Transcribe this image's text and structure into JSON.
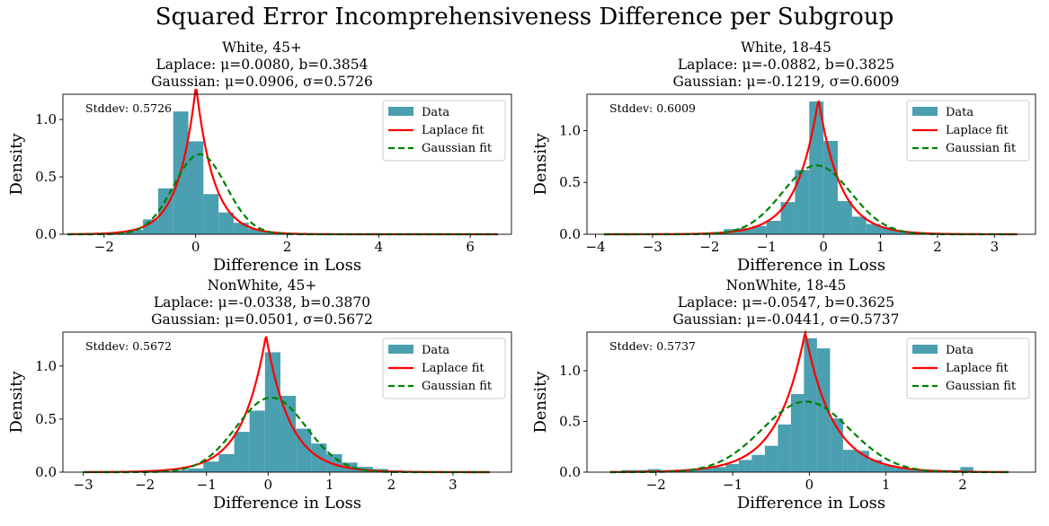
{
  "figure": {
    "title": "Squared Error Incomprehensiveness Difference per Subgroup"
  },
  "colors": {
    "hist": "#4a9fb0",
    "laplace": "#ff0000",
    "gaussian": "#008000"
  },
  "chart_data": [
    {
      "type": "bar",
      "title_lines": [
        "White, 45+",
        "Laplace: μ=0.0080, b=0.3854",
        "Gaussian: μ=0.0906, σ=0.5726"
      ],
      "xlabel": "Difference in Loss",
      "ylabel": "Density",
      "xlim": [
        -2.9,
        6.9
      ],
      "ylim": [
        0,
        1.22
      ],
      "xticks": [
        -2,
        0,
        2,
        4,
        6
      ],
      "yticks": [
        0.0,
        0.5,
        1.0
      ],
      "annotation": "Stddev: 0.5726",
      "legend": [
        "Data",
        "Laplace fit",
        "Gaussian fit"
      ],
      "legend_position": "top-right",
      "bin_edges": [
        -2.8,
        -2.47,
        -2.14,
        -1.81,
        -1.48,
        -1.15,
        -0.82,
        -0.49,
        -0.16,
        0.17,
        0.5,
        0.83,
        1.16,
        1.49,
        1.82,
        2.15,
        2.48,
        2.81,
        3.14,
        3.47,
        3.8,
        4.13,
        4.46,
        4.79,
        5.12,
        5.45,
        5.78,
        6.11,
        6.44
      ],
      "density": [
        0.003,
        0.003,
        0.006,
        0.015,
        0.04,
        0.13,
        0.4,
        1.07,
        0.81,
        0.35,
        0.19,
        0.1,
        0.05,
        0.02,
        0.01,
        0.005,
        0.004,
        0.003,
        0.003,
        0.002,
        0.002,
        0.002,
        0.001,
        0.001,
        0.001,
        0.001,
        0.001,
        0.001
      ],
      "laplace": {
        "mu": 0.008,
        "b": 0.3854
      },
      "gaussian": {
        "mu": 0.0906,
        "sigma": 0.5726
      },
      "fit_range": [
        -2.8,
        6.6
      ]
    },
    {
      "type": "bar",
      "title_lines": [
        "White, 18-45",
        "Laplace: μ=-0.0882, b=0.3825",
        "Gaussian: μ=-0.1219, σ=0.6009"
      ],
      "xlabel": "Difference in Loss",
      "ylabel": "Density",
      "xlim": [
        -4.15,
        3.72
      ],
      "ylim": [
        0,
        1.35
      ],
      "xticks": [
        -4,
        -3,
        -2,
        -1,
        0,
        1,
        2,
        3
      ],
      "yticks": [
        0.0,
        0.5,
        1.0
      ],
      "annotation": "Stddev: 0.6009",
      "legend": [
        "Data",
        "Laplace fit",
        "Gaussian fit"
      ],
      "legend_position": "top-right",
      "bin_edges": [
        -3.0,
        -2.75,
        -2.5,
        -2.25,
        -2.0,
        -1.75,
        -1.5,
        -1.25,
        -1.0,
        -0.75,
        -0.5,
        -0.25,
        0.0,
        0.25,
        0.5,
        0.75,
        1.0,
        1.25,
        1.5,
        1.75,
        2.0,
        2.25,
        2.5,
        2.75,
        3.0
      ],
      "density": [
        0.002,
        0.002,
        0.004,
        0.006,
        0.02,
        0.05,
        0.06,
        0.08,
        0.13,
        0.31,
        0.62,
        1.28,
        0.9,
        0.32,
        0.17,
        0.1,
        0.07,
        0.03,
        0.015,
        0.008,
        0.005,
        0.003,
        0.002,
        0.002
      ],
      "laplace": {
        "mu": -0.0882,
        "b": 0.3825
      },
      "gaussian": {
        "mu": -0.1219,
        "sigma": 0.6009
      },
      "fit_range": [
        -3.85,
        3.4
      ]
    },
    {
      "type": "bar",
      "title_lines": [
        "NonWhite, 45+",
        "Laplace: μ=-0.0338, b=0.3870",
        "Gaussian: μ=0.0501, σ=0.5672"
      ],
      "xlabel": "Difference in Loss",
      "ylabel": "Density",
      "xlim": [
        -3.33,
        3.95
      ],
      "ylim": [
        0,
        1.32
      ],
      "xticks": [
        -3,
        -2,
        -1,
        0,
        1,
        2,
        3
      ],
      "yticks": [
        0.0,
        0.5,
        1.0
      ],
      "annotation": "Stddev: 0.5672",
      "legend": [
        "Data",
        "Laplace fit",
        "Gaussian fit"
      ],
      "legend_position": "top-right",
      "bin_edges": [
        -3.05,
        -2.8,
        -2.55,
        -2.3,
        -2.05,
        -1.8,
        -1.55,
        -1.3,
        -1.05,
        -0.8,
        -0.55,
        -0.3,
        -0.05,
        0.2,
        0.45,
        0.7,
        0.95,
        1.2,
        1.45,
        1.7,
        1.95,
        2.2,
        2.45,
        2.7,
        2.95,
        3.2,
        3.45
      ],
      "density": [
        0.003,
        0.002,
        0.002,
        0.003,
        0.006,
        0.01,
        0.02,
        0.035,
        0.1,
        0.17,
        0.38,
        0.58,
        1.13,
        0.72,
        0.41,
        0.27,
        0.17,
        0.09,
        0.05,
        0.03,
        0.015,
        0.008,
        0.005,
        0.003,
        0.002,
        0.002
      ],
      "laplace": {
        "mu": -0.0338,
        "b": 0.387
      },
      "gaussian": {
        "mu": 0.0501,
        "sigma": 0.5672
      },
      "fit_range": [
        -3.0,
        3.6
      ]
    },
    {
      "type": "bar",
      "title_lines": [
        "NonWhite, 18-45",
        "Laplace: μ=-0.0547, b=0.3625",
        "Gaussian: μ=-0.0441, σ=0.5737"
      ],
      "xlabel": "Difference in Loss",
      "ylabel": "Density",
      "xlim": [
        -2.9,
        2.95
      ],
      "ylim": [
        0,
        1.38
      ],
      "xticks": [
        -2,
        -1,
        0,
        1,
        2
      ],
      "yticks": [
        0.0,
        0.5,
        1.0
      ],
      "annotation": "Stddev: 0.5737",
      "legend": [
        "Data",
        "Laplace fit",
        "Gaussian fit"
      ],
      "legend_position": "top-right",
      "bin_edges": [
        -2.45,
        -2.28,
        -2.11,
        -1.94,
        -1.77,
        -1.6,
        -1.43,
        -1.26,
        -1.09,
        -0.92,
        -0.75,
        -0.58,
        -0.41,
        -0.24,
        -0.07,
        0.1,
        0.27,
        0.44,
        0.61,
        0.78,
        0.95,
        1.12,
        1.29,
        1.46,
        1.63,
        1.8,
        1.97,
        2.14
      ],
      "density": [
        0.02,
        0.02,
        0.03,
        0.02,
        0.02,
        0.03,
        0.035,
        0.05,
        0.08,
        0.12,
        0.17,
        0.26,
        0.47,
        0.77,
        1.32,
        1.22,
        0.53,
        0.22,
        0.21,
        0.12,
        0.07,
        0.04,
        0.03,
        0.02,
        0.02,
        0.02,
        0.05
      ],
      "laplace": {
        "mu": -0.0547,
        "b": 0.3625
      },
      "gaussian": {
        "mu": -0.0441,
        "sigma": 0.5737
      },
      "fit_range": [
        -2.6,
        2.6
      ]
    }
  ]
}
